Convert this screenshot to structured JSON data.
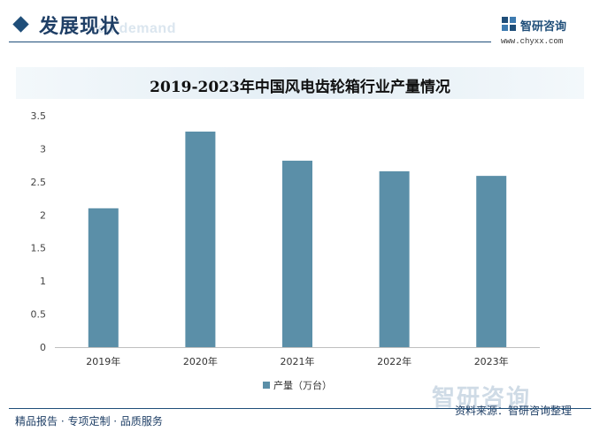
{
  "header": {
    "section_title": "发展现状",
    "section_watermark": "ed demand",
    "brand_name": "智研咨询",
    "brand_url": "www.chyxx.com"
  },
  "chart_data": {
    "type": "bar",
    "title": "2019-2023年中国风电齿轮箱行业产量情况",
    "categories": [
      "2019年",
      "2020年",
      "2021年",
      "2022年",
      "2023年"
    ],
    "series": [
      {
        "name": "产量（万台）",
        "values": [
          2.1,
          3.26,
          2.82,
          2.66,
          2.59
        ]
      }
    ],
    "xlabel": "",
    "ylabel": "",
    "ylim": [
      0,
      3.5
    ],
    "yticks": [
      "0",
      "0.5",
      "1",
      "1.5",
      "2",
      "2.5",
      "3",
      "3.5"
    ],
    "grid": false,
    "legend_position": "bottom",
    "bar_color": "#5b8fa8"
  },
  "footer": {
    "left": "精品报告 · 专项定制 · 品质服务",
    "source": "资料来源：智研咨询整理",
    "watermark": "智研咨询"
  }
}
